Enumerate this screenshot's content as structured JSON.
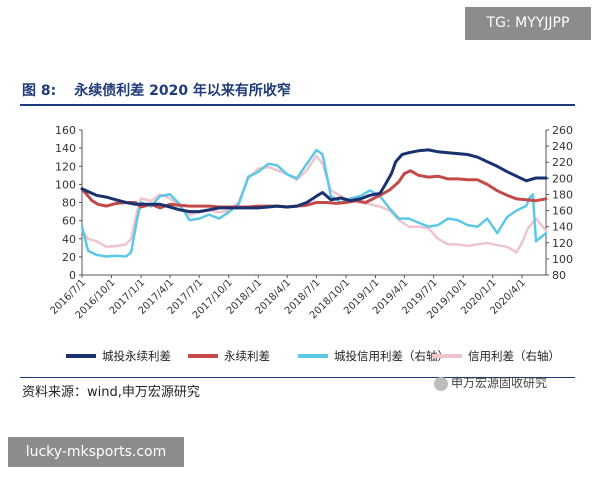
{
  "badge_top": "TG: MYYJJPP",
  "figure": {
    "label": "图 8:",
    "title": "永续债利差 2020 年以来有所收窄"
  },
  "source": "资料来源：wind,申万宏源研究",
  "watermark": "申万宏源固收研究",
  "badge_bottom": "lucky-mksports.com",
  "chart_data": {
    "type": "line",
    "x_ticks": [
      "2016/7/1",
      "2016/10/1",
      "2017/1/1",
      "2017/4/1",
      "2017/7/1",
      "2017/10/1",
      "2018/1/1",
      "2018/4/1",
      "2018/7/1",
      "2018/10/1",
      "2019/1/1",
      "2019/4/1",
      "2019/7/1",
      "2019/10/1",
      "2020/1/1",
      "2020/4/1"
    ],
    "x_range": [
      "2016-07-01",
      "2020-06-15"
    ],
    "y_left": {
      "min": 0,
      "max": 160,
      "ticks": [
        0,
        20,
        40,
        60,
        80,
        100,
        120,
        140,
        160
      ]
    },
    "y_right": {
      "min": 80,
      "max": 260,
      "ticks": [
        80,
        100,
        120,
        140,
        160,
        180,
        200,
        220,
        240,
        260
      ]
    },
    "grid": false,
    "legend_position": "bottom",
    "series": [
      {
        "name": "城投永续利差",
        "axis": "left",
        "color": "#1a3170",
        "points": [
          [
            "2016-07-01",
            95
          ],
          [
            "2016-08-15",
            88
          ],
          [
            "2016-09-15",
            86
          ],
          [
            "2016-10-15",
            83
          ],
          [
            "2016-11-15",
            80
          ],
          [
            "2016-12-15",
            78
          ],
          [
            "2017-01-01",
            78
          ],
          [
            "2017-02-01",
            78
          ],
          [
            "2017-03-01",
            78
          ],
          [
            "2017-04-01",
            75
          ],
          [
            "2017-05-01",
            72
          ],
          [
            "2017-06-01",
            70
          ],
          [
            "2017-07-01",
            70
          ],
          [
            "2017-08-01",
            72
          ],
          [
            "2017-09-01",
            74
          ],
          [
            "2017-10-01",
            74
          ],
          [
            "2017-11-01",
            74
          ],
          [
            "2017-12-01",
            74
          ],
          [
            "2018-01-01",
            74
          ],
          [
            "2018-02-01",
            75
          ],
          [
            "2018-03-01",
            76
          ],
          [
            "2018-04-01",
            75
          ],
          [
            "2018-05-01",
            76
          ],
          [
            "2018-06-01",
            80
          ],
          [
            "2018-07-01",
            87
          ],
          [
            "2018-07-20",
            91
          ],
          [
            "2018-08-15",
            83
          ],
          [
            "2018-09-15",
            85
          ],
          [
            "2018-10-15",
            82
          ],
          [
            "2018-11-15",
            84
          ],
          [
            "2018-12-15",
            88
          ],
          [
            "2019-01-15",
            90
          ],
          [
            "2019-02-01",
            100
          ],
          [
            "2019-02-20",
            112
          ],
          [
            "2019-03-05",
            125
          ],
          [
            "2019-03-25",
            133
          ],
          [
            "2019-04-15",
            135
          ],
          [
            "2019-05-15",
            137
          ],
          [
            "2019-06-15",
            138
          ],
          [
            "2019-07-15",
            136
          ],
          [
            "2019-08-15",
            135
          ],
          [
            "2019-09-15",
            134
          ],
          [
            "2019-10-15",
            133
          ],
          [
            "2019-11-15",
            130
          ],
          [
            "2019-12-15",
            125
          ],
          [
            "2020-01-15",
            120
          ],
          [
            "2020-02-15",
            114
          ],
          [
            "2020-03-15",
            109
          ],
          [
            "2020-04-15",
            104
          ],
          [
            "2020-05-15",
            107
          ],
          [
            "2020-06-15",
            107
          ]
        ]
      },
      {
        "name": "永续利差",
        "axis": "left",
        "color": "#c44a4a",
        "points": [
          [
            "2016-07-01",
            95
          ],
          [
            "2016-08-01",
            82
          ],
          [
            "2016-08-20",
            78
          ],
          [
            "2016-09-15",
            76
          ],
          [
            "2016-10-15",
            79
          ],
          [
            "2016-11-15",
            80
          ],
          [
            "2016-12-15",
            80
          ],
          [
            "2017-01-01",
            75
          ],
          [
            "2017-02-01",
            78
          ],
          [
            "2017-03-01",
            74
          ],
          [
            "2017-04-01",
            78
          ],
          [
            "2017-05-01",
            77
          ],
          [
            "2017-06-01",
            76
          ],
          [
            "2017-07-01",
            76
          ],
          [
            "2017-08-01",
            76
          ],
          [
            "2017-09-01",
            75
          ],
          [
            "2017-10-01",
            75
          ],
          [
            "2017-11-01",
            75
          ],
          [
            "2017-12-01",
            75
          ],
          [
            "2018-01-01",
            76
          ],
          [
            "2018-02-01",
            76
          ],
          [
            "2018-03-01",
            76
          ],
          [
            "2018-04-01",
            75
          ],
          [
            "2018-05-01",
            76
          ],
          [
            "2018-06-01",
            77
          ],
          [
            "2018-07-01",
            80
          ],
          [
            "2018-08-01",
            80
          ],
          [
            "2018-09-01",
            79
          ],
          [
            "2018-10-01",
            80
          ],
          [
            "2018-11-01",
            82
          ],
          [
            "2018-12-01",
            80
          ],
          [
            "2019-01-15",
            88
          ],
          [
            "2019-02-15",
            94
          ],
          [
            "2019-03-15",
            103
          ],
          [
            "2019-04-01",
            112
          ],
          [
            "2019-04-20",
            115
          ],
          [
            "2019-05-15",
            110
          ],
          [
            "2019-06-15",
            108
          ],
          [
            "2019-07-15",
            109
          ],
          [
            "2019-08-15",
            106
          ],
          [
            "2019-09-15",
            106
          ],
          [
            "2019-10-15",
            105
          ],
          [
            "2019-11-15",
            105
          ],
          [
            "2019-12-15",
            100
          ],
          [
            "2020-01-15",
            93
          ],
          [
            "2020-02-15",
            88
          ],
          [
            "2020-03-15",
            84
          ],
          [
            "2020-04-15",
            83
          ],
          [
            "2020-05-15",
            82
          ],
          [
            "2020-06-15",
            84
          ]
        ]
      },
      {
        "name": "城投信用利差（右轴）",
        "axis": "right",
        "color": "#5bc8e6",
        "points": [
          [
            "2016-07-01",
            140
          ],
          [
            "2016-07-20",
            110
          ],
          [
            "2016-08-15",
            105
          ],
          [
            "2016-09-15",
            103
          ],
          [
            "2016-10-15",
            104
          ],
          [
            "2016-11-15",
            103
          ],
          [
            "2016-12-01",
            108
          ],
          [
            "2016-12-20",
            150
          ],
          [
            "2017-01-01",
            170
          ],
          [
            "2017-02-01",
            165
          ],
          [
            "2017-03-01",
            178
          ],
          [
            "2017-04-01",
            180
          ],
          [
            "2017-05-01",
            168
          ],
          [
            "2017-06-01",
            148
          ],
          [
            "2017-07-01",
            150
          ],
          [
            "2017-08-01",
            155
          ],
          [
            "2017-09-01",
            150
          ],
          [
            "2017-10-01",
            158
          ],
          [
            "2017-11-01",
            168
          ],
          [
            "2017-12-01",
            202
          ],
          [
            "2018-01-01",
            208
          ],
          [
            "2018-02-01",
            218
          ],
          [
            "2018-03-01",
            216
          ],
          [
            "2018-04-01",
            205
          ],
          [
            "2018-05-01",
            200
          ],
          [
            "2018-06-01",
            218
          ],
          [
            "2018-07-01",
            235
          ],
          [
            "2018-07-20",
            230
          ],
          [
            "2018-08-15",
            178
          ],
          [
            "2018-09-15",
            170
          ],
          [
            "2018-10-15",
            175
          ],
          [
            "2018-11-15",
            178
          ],
          [
            "2018-12-15",
            185
          ],
          [
            "2019-01-15",
            178
          ],
          [
            "2019-02-15",
            162
          ],
          [
            "2019-03-15",
            150
          ],
          [
            "2019-04-15",
            150
          ],
          [
            "2019-05-15",
            145
          ],
          [
            "2019-06-15",
            140
          ],
          [
            "2019-07-15",
            142
          ],
          [
            "2019-08-15",
            150
          ],
          [
            "2019-09-15",
            148
          ],
          [
            "2019-10-15",
            142
          ],
          [
            "2019-11-15",
            140
          ],
          [
            "2019-12-15",
            150
          ],
          [
            "2020-01-15",
            132
          ],
          [
            "2020-02-15",
            152
          ],
          [
            "2020-03-15",
            160
          ],
          [
            "2020-04-15",
            166
          ],
          [
            "2020-04-25",
            176
          ],
          [
            "2020-05-05",
            180
          ],
          [
            "2020-05-15",
            122
          ],
          [
            "2020-06-15",
            132
          ]
        ]
      },
      {
        "name": "信用利差（右轴）",
        "axis": "right",
        "color": "#f0c4cc",
        "points": [
          [
            "2016-07-01",
            135
          ],
          [
            "2016-07-20",
            125
          ],
          [
            "2016-08-15",
            122
          ],
          [
            "2016-09-15",
            115
          ],
          [
            "2016-10-15",
            116
          ],
          [
            "2016-11-15",
            118
          ],
          [
            "2016-12-01",
            125
          ],
          [
            "2016-12-20",
            160
          ],
          [
            "2017-01-01",
            175
          ],
          [
            "2017-02-01",
            172
          ],
          [
            "2017-03-01",
            180
          ],
          [
            "2017-04-01",
            175
          ],
          [
            "2017-05-01",
            165
          ],
          [
            "2017-06-01",
            155
          ],
          [
            "2017-07-01",
            158
          ],
          [
            "2017-08-01",
            160
          ],
          [
            "2017-09-01",
            158
          ],
          [
            "2017-10-01",
            160
          ],
          [
            "2017-11-01",
            170
          ],
          [
            "2017-12-01",
            200
          ],
          [
            "2018-01-01",
            212
          ],
          [
            "2018-02-01",
            214
          ],
          [
            "2018-03-01",
            210
          ],
          [
            "2018-04-01",
            205
          ],
          [
            "2018-05-01",
            198
          ],
          [
            "2018-06-01",
            210
          ],
          [
            "2018-07-01",
            228
          ],
          [
            "2018-07-20",
            218
          ],
          [
            "2018-08-15",
            185
          ],
          [
            "2018-09-15",
            178
          ],
          [
            "2018-10-15",
            172
          ],
          [
            "2018-11-15",
            170
          ],
          [
            "2018-12-15",
            168
          ],
          [
            "2019-01-15",
            165
          ],
          [
            "2019-02-15",
            160
          ],
          [
            "2019-03-15",
            148
          ],
          [
            "2019-04-15",
            140
          ],
          [
            "2019-05-15",
            140
          ],
          [
            "2019-06-15",
            138
          ],
          [
            "2019-07-15",
            125
          ],
          [
            "2019-08-15",
            118
          ],
          [
            "2019-09-15",
            118
          ],
          [
            "2019-10-15",
            116
          ],
          [
            "2019-11-15",
            118
          ],
          [
            "2019-12-15",
            120
          ],
          [
            "2020-01-15",
            117
          ],
          [
            "2020-02-15",
            115
          ],
          [
            "2020-03-15",
            108
          ],
          [
            "2020-04-01",
            120
          ],
          [
            "2020-04-20",
            138
          ],
          [
            "2020-05-15",
            150
          ],
          [
            "2020-06-15",
            135
          ]
        ]
      }
    ]
  }
}
